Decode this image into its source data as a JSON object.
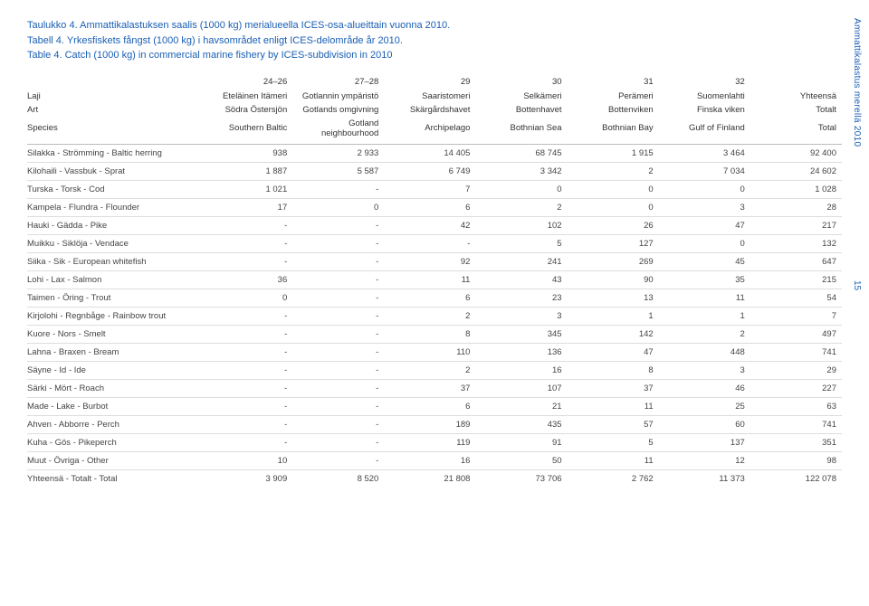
{
  "titles": [
    {
      "prefix": "Taulukko 4.",
      "text": " Ammattikalastuksen saalis (1000 kg) merialueella ICES-osa-alueittain vuonna 2010."
    },
    {
      "prefix": "Tabell 4.",
      "text": " Yrkesfiskets fångst (1000 kg) i havsområdet enligt ICES-delområde år 2010."
    },
    {
      "prefix": "Table 4.",
      "text": " Catch (1000 kg) in commercial marine fishery by ICES-subdivision in 2010"
    }
  ],
  "side_text": "Ammattikalastus merellä 2010",
  "page_num": "15",
  "col_nums": [
    "",
    "24–26",
    "27–28",
    "29",
    "30",
    "31",
    "32",
    ""
  ],
  "header_rows": [
    [
      "Laji",
      "Eteläinen Itämeri",
      "Gotlannin ympäristö",
      "Saaristomeri",
      "Selkämeri",
      "Perämeri",
      "Suomenlahti",
      "Yhteensä"
    ],
    [
      "Art",
      "Södra Östersjön",
      "Gotlands omgivning",
      "Skärgårdshavet",
      "Bottenhavet",
      "Bottenviken",
      "Finska viken",
      "Totalt"
    ],
    [
      "Species",
      "Southern Baltic",
      "Gotland neighbourhood",
      "Archipelago",
      "Bothnian Sea",
      "Bothnian Bay",
      "Gulf of Finland",
      "Total"
    ]
  ],
  "rows": [
    [
      "Silakka - Strömming - Baltic herring",
      "938",
      "2 933",
      "14 405",
      "68 745",
      "1 915",
      "3 464",
      "92 400"
    ],
    [
      "Kilohaili - Vassbuk - Sprat",
      "1 887",
      "5 587",
      "6 749",
      "3 342",
      "2",
      "7 034",
      "24 602"
    ],
    [
      "Turska - Torsk - Cod",
      "1 021",
      "-",
      "7",
      "0",
      "0",
      "0",
      "1 028"
    ],
    [
      "Kampela - Flundra - Flounder",
      "17",
      "0",
      "6",
      "2",
      "0",
      "3",
      "28"
    ],
    [
      "Hauki - Gädda - Pike",
      "-",
      "-",
      "42",
      "102",
      "26",
      "47",
      "217"
    ],
    [
      "Muikku - Siklöja - Vendace",
      "-",
      "-",
      "-",
      "5",
      "127",
      "0",
      "132"
    ],
    [
      "Siika - Sik - European whitefish",
      "-",
      "-",
      "92",
      "241",
      "269",
      "45",
      "647"
    ],
    [
      "Lohi - Lax - Salmon",
      "36",
      "-",
      "11",
      "43",
      "90",
      "35",
      "215"
    ],
    [
      "Taimen - Öring - Trout",
      "0",
      "-",
      "6",
      "23",
      "13",
      "11",
      "54"
    ],
    [
      "Kirjolohi - Regnbåge - Rainbow trout",
      "-",
      "-",
      "2",
      "3",
      "1",
      "1",
      "7"
    ],
    [
      "Kuore - Nors - Smelt",
      "-",
      "-",
      "8",
      "345",
      "142",
      "2",
      "497"
    ],
    [
      "Lahna - Braxen - Bream",
      "-",
      "-",
      "110",
      "136",
      "47",
      "448",
      "741"
    ],
    [
      "Säyne - Id - Ide",
      "-",
      "-",
      "2",
      "16",
      "8",
      "3",
      "29"
    ],
    [
      "Särki - Mört - Roach",
      "-",
      "-",
      "37",
      "107",
      "37",
      "46",
      "227"
    ],
    [
      "Made - Lake - Burbot",
      "-",
      "-",
      "6",
      "21",
      "11",
      "25",
      "63"
    ],
    [
      "Ahven - Abborre - Perch",
      "-",
      "-",
      "189",
      "435",
      "57",
      "60",
      "741"
    ],
    [
      "Kuha - Gös - Pikeperch",
      "-",
      "-",
      "119",
      "91",
      "5",
      "137",
      "351"
    ],
    [
      "Muut - Övriga - Other",
      "10",
      "-",
      "16",
      "50",
      "11",
      "12",
      "98"
    ],
    [
      "Yhteensä - Totalt - Total",
      "3 909",
      "8 520",
      "21 808",
      "73 706",
      "2 762",
      "11 373",
      "122 078"
    ]
  ]
}
